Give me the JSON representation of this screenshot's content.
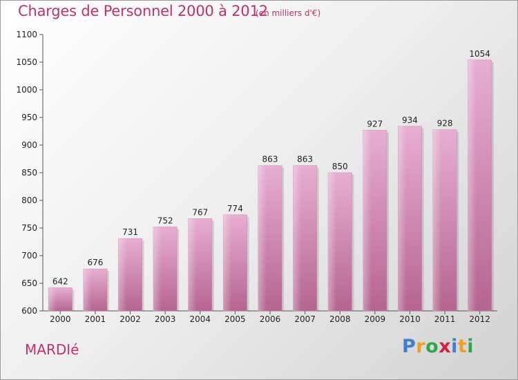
{
  "title": "Charges de Personnel 2000 à 2012",
  "subtitle": "(en milliers d'€)",
  "commune": "MARDIé",
  "logo": {
    "letters": [
      "P",
      "r",
      "o",
      "x",
      "i",
      "t",
      "i"
    ],
    "colors": [
      "#3a7fd0",
      "#f0a020",
      "#2ea84a",
      "#d02040",
      "#3a7fd0",
      "#f0a020",
      "#2ea84a"
    ]
  },
  "colors": {
    "bar": "#d98fbf",
    "bar_light": "#e8aed2",
    "bar_dark": "#b5658f",
    "title": "#c0306a"
  },
  "chart_data": {
    "type": "bar",
    "categories": [
      "2000",
      "2001",
      "2002",
      "2003",
      "2004",
      "2005",
      "2006",
      "2007",
      "2008",
      "2009",
      "2010",
      "2011",
      "2012"
    ],
    "values": [
      642,
      676,
      731,
      752,
      767,
      774,
      863,
      863,
      850,
      927,
      934,
      928,
      1054
    ],
    "data_labels": [
      "642",
      "676",
      "731",
      "752",
      "767",
      "774",
      "863",
      "863",
      "850",
      "927",
      "934",
      "928",
      "1054"
    ],
    "title": "Charges de Personnel 2000 à 2012",
    "subtitle": "(en milliers d'€)",
    "ylim": [
      600,
      1100
    ],
    "yticks": [
      600,
      650,
      700,
      750,
      800,
      850,
      900,
      950,
      1000,
      1050,
      1100
    ],
    "ytick_labels": [
      "600",
      "650",
      "700",
      "750",
      "800",
      "850",
      "900",
      "950",
      "1000",
      "1050",
      "1100"
    ],
    "grid": false,
    "legend": "none"
  }
}
